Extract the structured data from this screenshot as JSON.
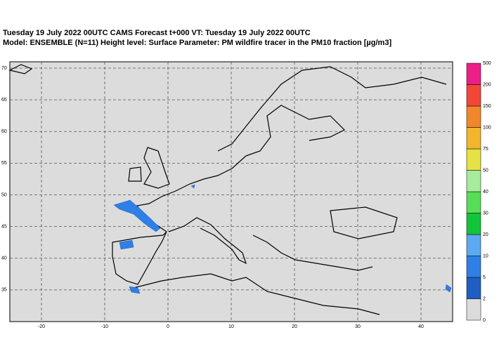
{
  "header": {
    "line1": "Tuesday 19 July 2022 00UTC CAMS Forecast t+000 VT: Tuesday 19 July 2022 00UTC",
    "line2": "Model: ENSEMBLE (N=11)  Height level: Surface  Parameter: PM wildfire tracer in the PM10 fraction [µg/m3]"
  },
  "map": {
    "xlim": [
      -25,
      45
    ],
    "ylim": [
      30,
      71
    ],
    "xticks": [
      -20,
      -10,
      0,
      10,
      20,
      30,
      40
    ],
    "yticks": [
      35,
      40,
      45,
      50,
      55,
      60,
      65,
      70
    ],
    "grid": true
  },
  "colorbar": {
    "levels": [
      0,
      2,
      5,
      10,
      20,
      30,
      40,
      50,
      75,
      100,
      150,
      200,
      500
    ],
    "colors": [
      "#dcdcdc",
      "#1f5fc4",
      "#2f7fe6",
      "#5aa9f2",
      "#12c43a",
      "#58dd58",
      "#a6ec9a",
      "#e6e244",
      "#f2b52c",
      "#f2862a",
      "#f2463a",
      "#ec1f86"
    ]
  }
}
